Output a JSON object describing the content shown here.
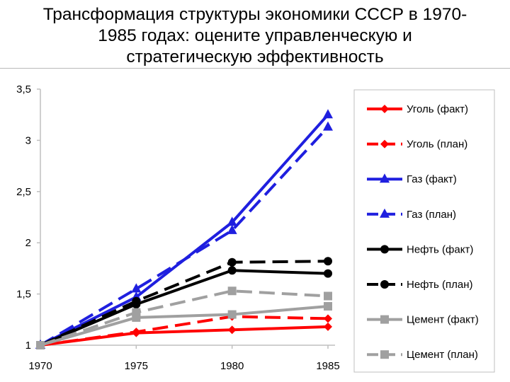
{
  "chart_data": {
    "type": "line",
    "title_lines": [
      "Трансформация структуры экономики СССР в 1970-",
      "1985 годах: оцените управленческую и",
      "стратегическую эффективность"
    ],
    "x": [
      "1970",
      "1975",
      "1980",
      "1985"
    ],
    "ylim": [
      1,
      3.5
    ],
    "yticks": [
      "1",
      "1,5",
      "2",
      "2,5",
      "3",
      "3,5"
    ],
    "ytick_values": [
      1,
      1.5,
      2,
      2.5,
      3,
      3.5
    ],
    "grid": false,
    "legend_position": "right",
    "series": [
      {
        "name": "Уголь (факт)",
        "values": [
          1,
          1.12,
          1.15,
          1.18
        ],
        "color": "#ff0000",
        "dash": "solid",
        "marker": "diamond"
      },
      {
        "name": "Уголь (план)",
        "values": [
          1,
          1.13,
          1.28,
          1.26
        ],
        "color": "#ff0000",
        "dash": "dashed",
        "marker": "diamond"
      },
      {
        "name": "Газ (факт)",
        "values": [
          1,
          1.47,
          2.2,
          3.25
        ],
        "color": "#1f1fdf",
        "dash": "solid",
        "marker": "triangle"
      },
      {
        "name": "Газ (план)",
        "values": [
          1,
          1.55,
          2.12,
          3.13
        ],
        "color": "#1f1fdf",
        "dash": "dashed",
        "marker": "triangle"
      },
      {
        "name": "Нефть (факт)",
        "values": [
          1,
          1.4,
          1.73,
          1.7
        ],
        "color": "#000000",
        "dash": "solid",
        "marker": "circle"
      },
      {
        "name": "Нефть (план)",
        "values": [
          1,
          1.43,
          1.81,
          1.82
        ],
        "color": "#000000",
        "dash": "dashed",
        "marker": "circle"
      },
      {
        "name": "Цемент (факт)",
        "values": [
          1,
          1.27,
          1.3,
          1.38
        ],
        "color": "#a0a0a0",
        "dash": "solid",
        "marker": "square"
      },
      {
        "name": "Цемент (план)",
        "values": [
          1,
          1.32,
          1.53,
          1.48
        ],
        "color": "#a0a0a0",
        "dash": "dashed",
        "marker": "square"
      }
    ]
  }
}
